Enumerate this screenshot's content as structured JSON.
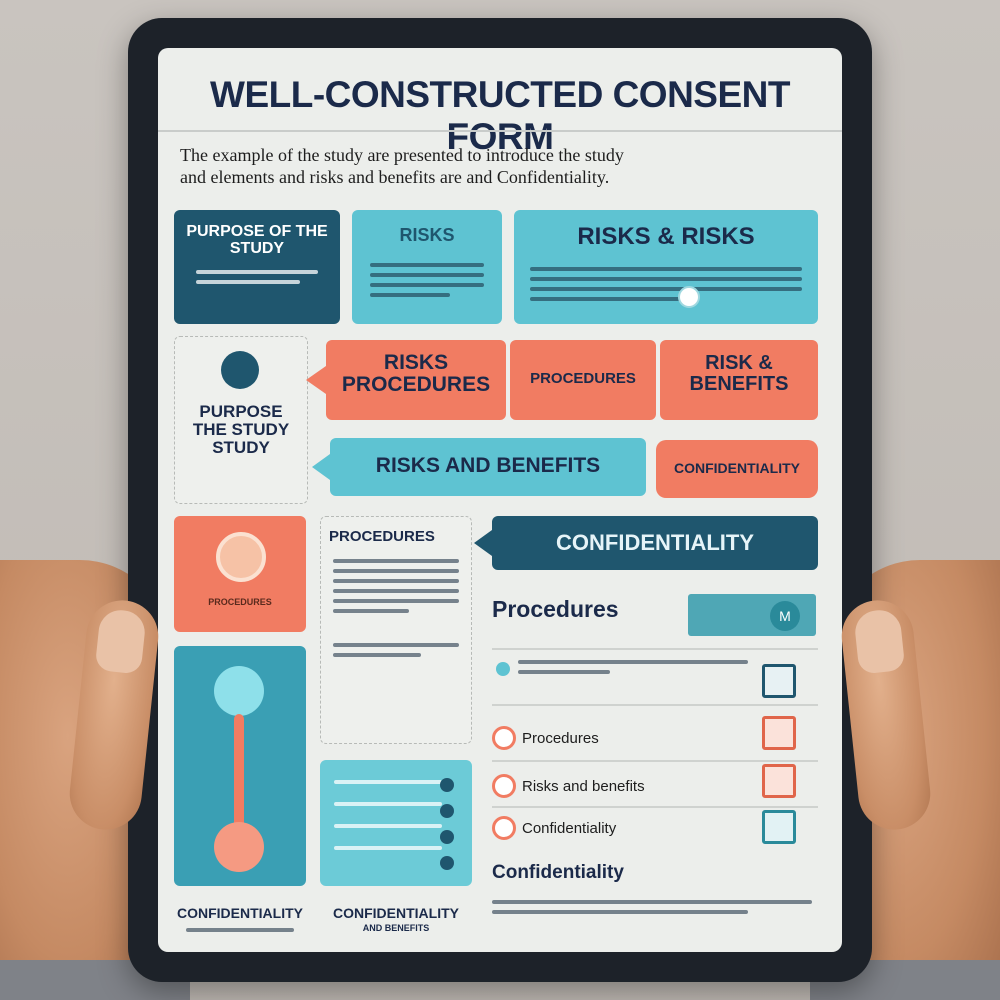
{
  "form": {
    "title": "WELL-CONSTRUCTED CONSENT FORM",
    "intro_line1": "The example of the study are presented to introduce the study",
    "intro_line2": "and elements and risks and benefits are and Confidentiality."
  },
  "cards": {
    "purpose_top": "PURPOSE OF THE STUDY",
    "risks_small": "RISKS",
    "risks_wide": "RISKS & RISKS",
    "purpose_side": "PURPOSE THE STUDY STUDY",
    "risks_procedures": "RISKS PROCEDURES",
    "procedures_center": "PROCEDURES",
    "risk_benefits": "RISK & BENEFITS",
    "risks_and_benefits": "RISKS AND BENEFITS",
    "confidentiality_small": "CONFIDENTIALITY",
    "procedures_box": "PROCEDURES",
    "confidentiality_banner": "CONFIDENTIALITY",
    "procedures_heading": "Procedures",
    "avatar_letter": "M",
    "coral_caption": "PROCEDURES",
    "bottom_label_1": "CONFIDENTIALITY",
    "bottom_label_2": "CONFIDENTIALITY",
    "bottom_sub_2": "AND BENEFITS",
    "confidentiality_heading": "Confidentiality"
  },
  "checklist": [
    {
      "label": "",
      "color": "#1f566e"
    },
    {
      "label": "Procedures",
      "color": "#e0654a"
    },
    {
      "label": "Risks and benefits",
      "color": "#e0654a"
    },
    {
      "label": "Confidentiality",
      "color": "#2a8a9a"
    }
  ],
  "colors": {
    "navy": "#1f566e",
    "teal": "#5ec3d2",
    "coral": "#f17c62",
    "title": "#1b2a4a"
  }
}
